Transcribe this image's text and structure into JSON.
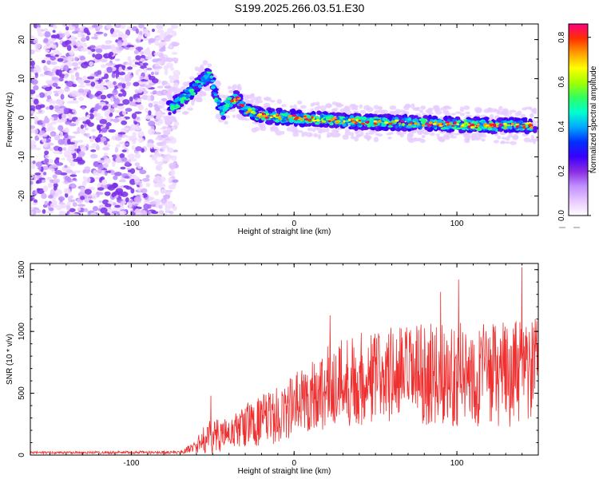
{
  "title": "S199.2025.266.03.51.E30",
  "chart_data": [
    {
      "type": "heatmap",
      "title": "S199.2025.266.03.51.E30",
      "xlabel": "Height of straight line (km)",
      "ylabel": "Frequency (Hz)",
      "xlim": [
        -162,
        150
      ],
      "ylim": [
        -25,
        24
      ],
      "xticks": [
        -100,
        0,
        100
      ],
      "yticks": [
        -20,
        -10,
        0,
        10,
        20
      ],
      "colorbar": {
        "label": "Normalized spectral amplitude",
        "range": [
          0,
          0.86
        ],
        "ticks": [
          "0.0",
          "0.2",
          "0.4",
          "0.6",
          "0.8"
        ],
        "colors": [
          "#ffffff",
          "#e8c8ff",
          "#c090ff",
          "#8a2be2",
          "#3a00ff",
          "#0030ff",
          "#00a8ff",
          "#00ffd0",
          "#30ff60",
          "#a0ff00",
          "#ffff00",
          "#ffa000",
          "#ff3000",
          "#ff0080"
        ]
      },
      "ridge": [
        {
          "x": -78,
          "f": 2
        },
        {
          "x": -68,
          "f": 5
        },
        {
          "x": -60,
          "f": 8
        },
        {
          "x": -52,
          "f": 11
        },
        {
          "x": -44,
          "f": 1
        },
        {
          "x": -40,
          "f": 4
        },
        {
          "x": -35,
          "f": 5
        },
        {
          "x": -30,
          "f": 2
        },
        {
          "x": -20,
          "f": 0.5
        },
        {
          "x": 0,
          "f": 0
        },
        {
          "x": 40,
          "f": -1
        },
        {
          "x": 80,
          "f": -1.5
        },
        {
          "x": 120,
          "f": -2
        },
        {
          "x": 148,
          "f": -2
        }
      ]
    },
    {
      "type": "line",
      "xlabel": "Height of straight line (km)",
      "ylabel": "SNR (10 * v/v)",
      "xlim": [
        -162,
        150
      ],
      "ylim": [
        0,
        1550
      ],
      "xticks": [
        -100,
        0,
        100
      ],
      "yticks": [
        0,
        500,
        1000,
        1500
      ],
      "color": "#ee3030",
      "envelope": [
        {
          "x": -162,
          "mean": 20,
          "amp": 10
        },
        {
          "x": -70,
          "mean": 22,
          "amp": 12
        },
        {
          "x": -62,
          "mean": 60,
          "amp": 40
        },
        {
          "x": -52,
          "mean": 150,
          "amp": 150
        },
        {
          "x": -40,
          "mean": 170,
          "amp": 120
        },
        {
          "x": -30,
          "mean": 240,
          "amp": 180
        },
        {
          "x": -10,
          "mean": 320,
          "amp": 230
        },
        {
          "x": 10,
          "mean": 480,
          "amp": 300
        },
        {
          "x": 30,
          "mean": 600,
          "amp": 380
        },
        {
          "x": 60,
          "mean": 650,
          "amp": 400
        },
        {
          "x": 100,
          "mean": 650,
          "amp": 420
        },
        {
          "x": 130,
          "mean": 650,
          "amp": 430
        },
        {
          "x": 150,
          "mean": 680,
          "amp": 420
        }
      ],
      "peaks": [
        {
          "x": -51,
          "y": 480
        },
        {
          "x": 22,
          "y": 1130
        },
        {
          "x": 90,
          "y": 1320
        },
        {
          "x": 101,
          "y": 1420
        },
        {
          "x": 140,
          "y": 1520
        },
        {
          "x": 148,
          "y": 1100
        }
      ]
    }
  ]
}
